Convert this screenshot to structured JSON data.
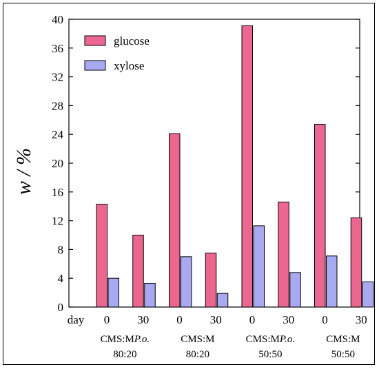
{
  "chart_data": {
    "type": "bar",
    "ylabel": "w / %",
    "ylim": [
      0,
      40
    ],
    "yticks": [
      0,
      4,
      8,
      12,
      16,
      20,
      24,
      28,
      32,
      36,
      40
    ],
    "day_label": "day",
    "categories": [
      "0",
      "30",
      "0",
      "30",
      "0",
      "30",
      "0",
      "30"
    ],
    "group_labels": [
      {
        "line1_prefix": "CMS:M",
        "line1_italic": "P.o.",
        "line2": "80:20"
      },
      {
        "line1_prefix": "CMS:M",
        "line1_italic": "",
        "line2": "80:20"
      },
      {
        "line1_prefix": "CMS:M",
        "line1_italic": "P.o.",
        "line2": "50:50"
      },
      {
        "line1_prefix": "CMS:M",
        "line1_italic": "",
        "line2": "50:50"
      }
    ],
    "series": [
      {
        "name": "glucose",
        "color": "#ec6790",
        "values": [
          14.3,
          10.0,
          24.1,
          7.5,
          39.1,
          14.6,
          25.4,
          12.4
        ]
      },
      {
        "name": "xylose",
        "color": "#a9a9f2",
        "values": [
          4.0,
          3.3,
          7.0,
          1.9,
          11.3,
          4.8,
          7.1,
          3.5
        ]
      }
    ],
    "legend_position": "top-left",
    "grid": false
  }
}
